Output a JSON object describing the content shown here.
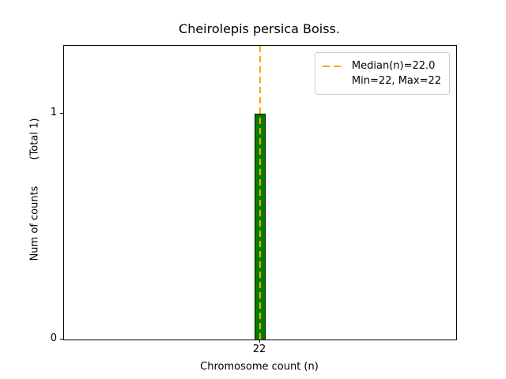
{
  "chart_data": {
    "type": "bar",
    "title": "Cheirolepis persica Boiss.",
    "xlabel": "Chromosome count (n)",
    "ylabel": "Num of counts        (Total 1)",
    "categories": [
      22
    ],
    "values": [
      1
    ],
    "median": 22.0,
    "min": 22,
    "max": 22,
    "total_counts": 1,
    "xlim": [
      20.25,
      23.75
    ],
    "ylim": [
      0,
      1.3
    ],
    "yticks": [
      0,
      1
    ],
    "bar_width": 0.1,
    "grid": false,
    "legend_position": "upper right",
    "colors": {
      "bar_fill": "#008000",
      "bar_edge": "#000000",
      "median_line": "#ffa500"
    },
    "legend": {
      "median_label": "Median(n)=22.0",
      "minmax_label": "Min=22, Max=22"
    }
  }
}
